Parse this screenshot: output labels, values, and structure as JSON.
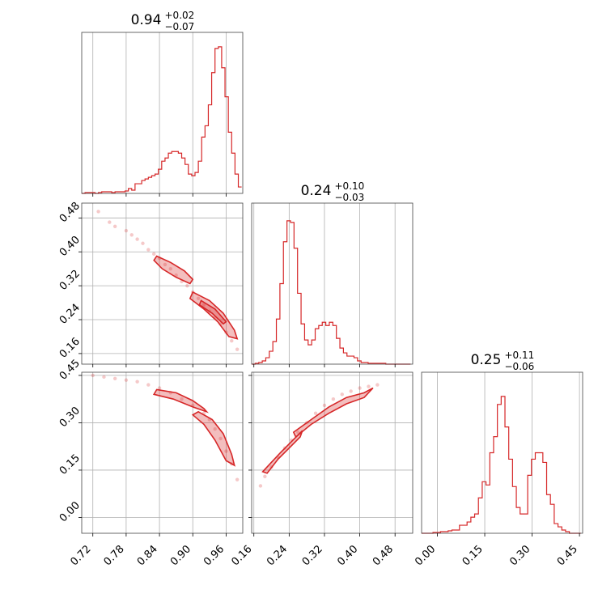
{
  "chart_data": [
    {
      "type": "histogram",
      "panel": "hist-param1",
      "title_main": "0.94",
      "title_plus": "+0.02",
      "title_minus": "−0.07",
      "xticks": [
        "0.72",
        "0.78",
        "0.84",
        "0.90",
        "0.96"
      ],
      "xtick_values": [
        0.72,
        0.78,
        0.84,
        0.9,
        0.96
      ],
      "xlim": [
        0.7,
        0.99
      ],
      "ylim": [
        0,
        1.0
      ],
      "color": "#d62728",
      "bins": [
        0.7,
        0.706,
        0.712,
        0.718,
        0.724,
        0.73,
        0.736,
        0.742,
        0.748,
        0.754,
        0.76,
        0.766,
        0.772,
        0.778,
        0.784,
        0.79,
        0.796,
        0.802,
        0.808,
        0.814,
        0.82,
        0.826,
        0.832,
        0.838,
        0.844,
        0.85,
        0.856,
        0.862,
        0.868,
        0.874,
        0.88,
        0.886,
        0.892,
        0.898,
        0.904,
        0.91,
        0.916,
        0.922,
        0.928,
        0.934,
        0.94,
        0.946,
        0.952,
        0.958,
        0.964,
        0.97,
        0.976,
        0.982,
        0.988
      ],
      "counts": [
        0.0,
        0.005,
        0.005,
        0.005,
        0.0,
        0.005,
        0.01,
        0.01,
        0.01,
        0.005,
        0.01,
        0.01,
        0.01,
        0.015,
        0.03,
        0.02,
        0.06,
        0.06,
        0.08,
        0.09,
        0.1,
        0.11,
        0.12,
        0.15,
        0.2,
        0.22,
        0.25,
        0.26,
        0.26,
        0.25,
        0.22,
        0.18,
        0.12,
        0.11,
        0.13,
        0.2,
        0.35,
        0.42,
        0.55,
        0.75,
        0.9,
        0.91,
        0.78,
        0.6,
        0.38,
        0.25,
        0.12,
        0.04
      ]
    },
    {
      "type": "histogram",
      "panel": "hist-param2",
      "title_main": "0.24",
      "title_plus": "+0.10",
      "title_minus": "−0.03",
      "xticks": [
        "0.16",
        "0.24",
        "0.32",
        "0.40",
        "0.48"
      ],
      "xtick_values": [
        0.16,
        0.24,
        0.32,
        0.4,
        0.48
      ],
      "xlim": [
        0.155,
        0.52
      ],
      "ylim": [
        0,
        1.0
      ],
      "color": "#d62728",
      "bins": [
        0.155,
        0.163,
        0.171,
        0.179,
        0.187,
        0.195,
        0.203,
        0.211,
        0.219,
        0.227,
        0.235,
        0.243,
        0.251,
        0.259,
        0.267,
        0.275,
        0.283,
        0.291,
        0.299,
        0.307,
        0.315,
        0.323,
        0.331,
        0.339,
        0.347,
        0.355,
        0.363,
        0.371,
        0.379,
        0.387,
        0.395,
        0.403,
        0.411,
        0.419,
        0.427,
        0.435,
        0.443,
        0.451,
        0.459,
        0.467,
        0.475,
        0.483,
        0.491,
        0.499,
        0.507,
        0.515
      ],
      "counts": [
        0.0,
        0.005,
        0.01,
        0.02,
        0.04,
        0.08,
        0.14,
        0.28,
        0.5,
        0.76,
        0.89,
        0.88,
        0.72,
        0.44,
        0.25,
        0.15,
        0.12,
        0.15,
        0.22,
        0.24,
        0.26,
        0.24,
        0.26,
        0.24,
        0.16,
        0.1,
        0.07,
        0.05,
        0.05,
        0.04,
        0.02,
        0.01,
        0.01,
        0.005,
        0.005,
        0.005,
        0.005,
        0.005,
        0.0,
        0.0,
        0.0,
        0.0,
        0.0,
        0.0,
        0.0
      ]
    },
    {
      "type": "histogram",
      "panel": "hist-param3",
      "title_main": "0.25",
      "title_plus": "+0.11",
      "title_minus": "−0.06",
      "xticks": [
        "0.00",
        "0.15",
        "0.30",
        "0.45"
      ],
      "xtick_values": [
        0.0,
        0.15,
        0.3,
        0.45
      ],
      "xlim": [
        -0.05,
        0.46
      ],
      "ylim": [
        0,
        1.0
      ],
      "color": "#d62728",
      "bins": [
        -0.05,
        -0.038,
        -0.026,
        -0.014,
        -0.002,
        0.01,
        0.022,
        0.034,
        0.046,
        0.058,
        0.07,
        0.082,
        0.094,
        0.106,
        0.118,
        0.13,
        0.142,
        0.154,
        0.166,
        0.178,
        0.19,
        0.202,
        0.214,
        0.226,
        0.238,
        0.25,
        0.262,
        0.274,
        0.286,
        0.298,
        0.31,
        0.322,
        0.334,
        0.346,
        0.358,
        0.37,
        0.382,
        0.394,
        0.406,
        0.418,
        0.43,
        0.442,
        0.454
      ],
      "counts": [
        0.0,
        0.0,
        0.0,
        0.005,
        0.005,
        0.01,
        0.01,
        0.015,
        0.02,
        0.02,
        0.05,
        0.05,
        0.07,
        0.1,
        0.12,
        0.22,
        0.32,
        0.3,
        0.5,
        0.6,
        0.8,
        0.85,
        0.66,
        0.46,
        0.29,
        0.16,
        0.12,
        0.12,
        0.36,
        0.46,
        0.5,
        0.5,
        0.44,
        0.24,
        0.18,
        0.06,
        0.04,
        0.02,
        0.01,
        0.0,
        0.0,
        0.0
      ]
    },
    {
      "type": "scatter-contour",
      "panel": "joint-p1-p2",
      "yticks": [
        "0.48",
        "0.40",
        "0.32",
        "0.24",
        "0.16"
      ],
      "ytick_values": [
        0.48,
        0.4,
        0.32,
        0.24,
        0.16
      ],
      "xlim": [
        0.7,
        0.99
      ],
      "ylim": [
        0.135,
        0.515
      ],
      "color": "#d62728",
      "points": [
        [
          0.73,
          0.495
        ],
        [
          0.75,
          0.47
        ],
        [
          0.76,
          0.46
        ],
        [
          0.78,
          0.45
        ],
        [
          0.79,
          0.44
        ],
        [
          0.8,
          0.43
        ],
        [
          0.81,
          0.42
        ],
        [
          0.82,
          0.405
        ],
        [
          0.83,
          0.395
        ],
        [
          0.84,
          0.385
        ],
        [
          0.85,
          0.37
        ],
        [
          0.86,
          0.36
        ],
        [
          0.87,
          0.345
        ],
        [
          0.88,
          0.33
        ],
        [
          0.89,
          0.32
        ],
        [
          0.9,
          0.305
        ],
        [
          0.91,
          0.29
        ],
        [
          0.92,
          0.275
        ],
        [
          0.93,
          0.26
        ],
        [
          0.94,
          0.245
        ],
        [
          0.95,
          0.23
        ],
        [
          0.96,
          0.21
        ],
        [
          0.97,
          0.19
        ],
        [
          0.98,
          0.17
        ]
      ],
      "contours": [
        [
          [
            0.835,
            0.39
          ],
          [
            0.86,
            0.375
          ],
          [
            0.885,
            0.355
          ],
          [
            0.9,
            0.335
          ],
          [
            0.895,
            0.325
          ],
          [
            0.87,
            0.34
          ],
          [
            0.845,
            0.36
          ],
          [
            0.83,
            0.38
          ]
        ],
        [
          [
            0.9,
            0.305
          ],
          [
            0.93,
            0.285
          ],
          [
            0.955,
            0.255
          ],
          [
            0.975,
            0.215
          ],
          [
            0.98,
            0.195
          ],
          [
            0.965,
            0.2
          ],
          [
            0.945,
            0.235
          ],
          [
            0.92,
            0.265
          ],
          [
            0.895,
            0.29
          ]
        ],
        [
          [
            0.915,
            0.285
          ],
          [
            0.94,
            0.265
          ],
          [
            0.96,
            0.235
          ],
          [
            0.955,
            0.23
          ],
          [
            0.935,
            0.255
          ],
          [
            0.912,
            0.275
          ]
        ]
      ]
    },
    {
      "type": "scatter-contour",
      "panel": "joint-p1-p3",
      "yticks": [
        "0.45",
        "0.30",
        "0.15",
        "0.00"
      ],
      "ytick_values": [
        0.45,
        0.3,
        0.15,
        0.0
      ],
      "xlim": [
        0.7,
        0.99
      ],
      "ylim": [
        -0.05,
        0.46
      ],
      "color": "#d62728",
      "points": [
        [
          0.72,
          0.45
        ],
        [
          0.74,
          0.445
        ],
        [
          0.76,
          0.44
        ],
        [
          0.78,
          0.435
        ],
        [
          0.8,
          0.43
        ],
        [
          0.82,
          0.42
        ],
        [
          0.84,
          0.41
        ],
        [
          0.86,
          0.395
        ],
        [
          0.88,
          0.375
        ],
        [
          0.9,
          0.355
        ],
        [
          0.92,
          0.33
        ],
        [
          0.93,
          0.31
        ],
        [
          0.94,
          0.28
        ],
        [
          0.95,
          0.25
        ],
        [
          0.96,
          0.21
        ],
        [
          0.97,
          0.17
        ],
        [
          0.98,
          0.12
        ]
      ],
      "contours": [
        [
          [
            0.835,
            0.405
          ],
          [
            0.87,
            0.395
          ],
          [
            0.9,
            0.37
          ],
          [
            0.92,
            0.345
          ],
          [
            0.925,
            0.335
          ],
          [
            0.9,
            0.35
          ],
          [
            0.865,
            0.375
          ],
          [
            0.83,
            0.39
          ]
        ],
        [
          [
            0.91,
            0.335
          ],
          [
            0.935,
            0.31
          ],
          [
            0.955,
            0.265
          ],
          [
            0.97,
            0.2
          ],
          [
            0.975,
            0.165
          ],
          [
            0.96,
            0.18
          ],
          [
            0.94,
            0.245
          ],
          [
            0.92,
            0.295
          ],
          [
            0.9,
            0.325
          ]
        ]
      ]
    },
    {
      "type": "scatter-contour",
      "panel": "joint-p2-p3",
      "xlim": [
        0.155,
        0.52
      ],
      "ylim": [
        -0.05,
        0.46
      ],
      "color": "#d62728",
      "points": [
        [
          0.175,
          0.1
        ],
        [
          0.185,
          0.13
        ],
        [
          0.2,
          0.16
        ],
        [
          0.215,
          0.19
        ],
        [
          0.23,
          0.22
        ],
        [
          0.245,
          0.245
        ],
        [
          0.26,
          0.27
        ],
        [
          0.28,
          0.3
        ],
        [
          0.3,
          0.33
        ],
        [
          0.32,
          0.355
        ],
        [
          0.34,
          0.375
        ],
        [
          0.36,
          0.39
        ],
        [
          0.38,
          0.4
        ],
        [
          0.4,
          0.41
        ],
        [
          0.42,
          0.415
        ],
        [
          0.44,
          0.42
        ]
      ],
      "contours": [
        [
          [
            0.18,
            0.145
          ],
          [
            0.2,
            0.175
          ],
          [
            0.22,
            0.205
          ],
          [
            0.245,
            0.24
          ],
          [
            0.27,
            0.275
          ],
          [
            0.265,
            0.255
          ],
          [
            0.24,
            0.22
          ],
          [
            0.215,
            0.185
          ],
          [
            0.19,
            0.14
          ]
        ],
        [
          [
            0.25,
            0.27
          ],
          [
            0.29,
            0.31
          ],
          [
            0.33,
            0.35
          ],
          [
            0.37,
            0.38
          ],
          [
            0.41,
            0.395
          ],
          [
            0.43,
            0.41
          ],
          [
            0.41,
            0.38
          ],
          [
            0.37,
            0.36
          ],
          [
            0.33,
            0.33
          ],
          [
            0.29,
            0.295
          ],
          [
            0.255,
            0.255
          ]
        ]
      ]
    }
  ]
}
